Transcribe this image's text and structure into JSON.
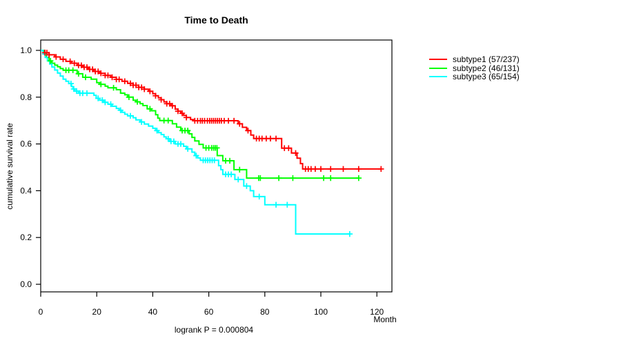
{
  "chart_data": {
    "type": "line",
    "subtype": "kaplan-meier-step-survival",
    "title": "Time to Death",
    "xlabel": "Month",
    "ylabel": "cumulative survival rate",
    "annotation": "logrank P = 0.000804",
    "xlim": [
      0,
      125
    ],
    "ylim": [
      0.0,
      1.0
    ],
    "xticks": [
      0,
      20,
      40,
      60,
      80,
      100,
      120
    ],
    "yticks": [
      "0.0",
      "0.2",
      "0.4",
      "0.6",
      "0.8",
      "1.0"
    ],
    "grid": false,
    "legend_position": "right-outside",
    "axis_color": "#000000",
    "background": "#ffffff",
    "series": [
      {
        "name": "subtype1 (57/237)",
        "events": 57,
        "n": 237,
        "color": "#FF0000",
        "end_month": 121.5,
        "steps": [
          [
            0,
            1.0
          ],
          [
            1.5,
            0.99
          ],
          [
            3,
            0.981
          ],
          [
            5,
            0.972
          ],
          [
            7,
            0.962
          ],
          [
            9,
            0.953
          ],
          [
            11,
            0.945
          ],
          [
            13,
            0.936
          ],
          [
            15,
            0.928
          ],
          [
            17,
            0.919
          ],
          [
            19,
            0.91
          ],
          [
            21,
            0.902
          ],
          [
            23,
            0.893
          ],
          [
            25,
            0.885
          ],
          [
            27,
            0.876
          ],
          [
            29,
            0.868
          ],
          [
            31,
            0.859
          ],
          [
            33,
            0.851
          ],
          [
            35,
            0.842
          ],
          [
            37,
            0.834
          ],
          [
            38.5,
            0.825
          ],
          [
            40,
            0.815
          ],
          [
            41,
            0.806
          ],
          [
            42,
            0.797
          ],
          [
            43,
            0.789
          ],
          [
            44,
            0.78
          ],
          [
            45,
            0.772
          ],
          [
            46.5,
            0.763
          ],
          [
            48,
            0.749
          ],
          [
            49,
            0.74
          ],
          [
            50,
            0.731
          ],
          [
            51,
            0.722
          ],
          [
            52,
            0.713
          ],
          [
            53.5,
            0.704
          ],
          [
            54.5,
            0.699
          ],
          [
            70.5,
            0.686
          ],
          [
            72,
            0.671
          ],
          [
            73.5,
            0.657
          ],
          [
            75,
            0.638
          ],
          [
            76,
            0.623
          ],
          [
            86,
            0.582
          ],
          [
            89.5,
            0.561
          ],
          [
            91.5,
            0.539
          ],
          [
            92.7,
            0.516
          ],
          [
            93.5,
            0.493
          ]
        ],
        "censor_months": [
          1.5,
          2.2,
          3,
          5.5,
          8,
          10.5,
          12,
          13.5,
          14.5,
          15.5,
          16.5,
          17.5,
          18.5,
          19.5,
          20.5,
          21.5,
          23,
          24,
          25.5,
          27,
          28,
          30,
          32,
          33,
          34,
          35,
          36,
          37,
          39,
          41,
          43,
          45,
          46,
          47,
          49,
          50.5,
          52,
          55,
          56,
          57,
          57.7,
          58.5,
          59.5,
          60.3,
          61,
          61.7,
          62.4,
          63.1,
          63.8,
          64.5,
          65.5,
          67,
          69,
          71,
          74,
          77,
          78,
          79,
          80.5,
          82,
          84,
          87,
          88.5,
          91,
          94.5,
          95.5,
          96.5,
          98,
          100,
          103.5,
          108,
          113.5,
          121.5
        ]
      },
      {
        "name": "subtype2 (46/131)",
        "events": 46,
        "n": 131,
        "color": "#00FF00",
        "end_month": 113.8,
        "steps": [
          [
            0,
            1.0
          ],
          [
            1,
            0.985
          ],
          [
            2,
            0.97
          ],
          [
            3,
            0.955
          ],
          [
            4,
            0.945
          ],
          [
            5,
            0.937
          ],
          [
            6,
            0.93
          ],
          [
            7,
            0.922
          ],
          [
            8,
            0.915
          ],
          [
            13,
            0.9
          ],
          [
            15,
            0.885
          ],
          [
            18,
            0.877
          ],
          [
            20,
            0.862
          ],
          [
            21,
            0.855
          ],
          [
            23,
            0.847
          ],
          [
            24,
            0.84
          ],
          [
            27,
            0.832
          ],
          [
            28.5,
            0.817
          ],
          [
            30,
            0.81
          ],
          [
            31,
            0.8
          ],
          [
            33,
            0.787
          ],
          [
            34,
            0.78
          ],
          [
            35.5,
            0.772
          ],
          [
            36.5,
            0.764
          ],
          [
            38,
            0.75
          ],
          [
            39.5,
            0.742
          ],
          [
            41,
            0.725
          ],
          [
            41.8,
            0.71
          ],
          [
            42.5,
            0.7
          ],
          [
            47,
            0.686
          ],
          [
            48.5,
            0.672
          ],
          [
            50,
            0.657
          ],
          [
            53,
            0.643
          ],
          [
            54,
            0.628
          ],
          [
            55,
            0.613
          ],
          [
            56.5,
            0.598
          ],
          [
            58,
            0.583
          ],
          [
            63,
            0.55
          ],
          [
            65,
            0.528
          ],
          [
            69,
            0.49
          ],
          [
            73.5,
            0.454
          ]
        ],
        "censor_months": [
          3.5,
          9,
          10,
          11.5,
          13.5,
          16,
          21.5,
          26,
          31.5,
          34.5,
          39,
          44,
          45.5,
          50.5,
          51.5,
          52.5,
          59,
          60,
          61,
          61.7,
          62.3,
          62.9,
          66,
          67.5,
          71,
          77.8,
          78.4,
          85,
          90,
          101,
          103.5,
          113.5
        ]
      },
      {
        "name": "subtype3 (65/154)",
        "events": 65,
        "n": 154,
        "color": "#00FFFF",
        "end_month": 110.6,
        "steps": [
          [
            0,
            1.0
          ],
          [
            0.8,
            0.985
          ],
          [
            1.6,
            0.97
          ],
          [
            2.4,
            0.955
          ],
          [
            3.2,
            0.942
          ],
          [
            4,
            0.929
          ],
          [
            5,
            0.916
          ],
          [
            6,
            0.903
          ],
          [
            7,
            0.89
          ],
          [
            8,
            0.877
          ],
          [
            9,
            0.868
          ],
          [
            10,
            0.858
          ],
          [
            11,
            0.845
          ],
          [
            11.6,
            0.835
          ],
          [
            12.2,
            0.826
          ],
          [
            13.5,
            0.817
          ],
          [
            19,
            0.808
          ],
          [
            19.8,
            0.795
          ],
          [
            21,
            0.787
          ],
          [
            22.5,
            0.778
          ],
          [
            24,
            0.77
          ],
          [
            25.5,
            0.761
          ],
          [
            27,
            0.752
          ],
          [
            28,
            0.744
          ],
          [
            29,
            0.735
          ],
          [
            30,
            0.727
          ],
          [
            31,
            0.72
          ],
          [
            33,
            0.712
          ],
          [
            34,
            0.703
          ],
          [
            35.5,
            0.694
          ],
          [
            37,
            0.685
          ],
          [
            38.5,
            0.676
          ],
          [
            40,
            0.667
          ],
          [
            41,
            0.657
          ],
          [
            42,
            0.648
          ],
          [
            43,
            0.64
          ],
          [
            44,
            0.63
          ],
          [
            44.8,
            0.622
          ],
          [
            46,
            0.611
          ],
          [
            48,
            0.6
          ],
          [
            51,
            0.59
          ],
          [
            52,
            0.579
          ],
          [
            54,
            0.565
          ],
          [
            55,
            0.55
          ],
          [
            56,
            0.54
          ],
          [
            57,
            0.53
          ],
          [
            63.5,
            0.507
          ],
          [
            64.3,
            0.49
          ],
          [
            65,
            0.47
          ],
          [
            69.3,
            0.448
          ],
          [
            72.5,
            0.42
          ],
          [
            74.8,
            0.4
          ],
          [
            76,
            0.375
          ],
          [
            80,
            0.34
          ],
          [
            91,
            0.215
          ]
        ],
        "censor_months": [
          10.8,
          11.8,
          12.8,
          14,
          15,
          16.5,
          20.5,
          22,
          23,
          25,
          28.5,
          32,
          36,
          41.5,
          45.5,
          46.5,
          47.5,
          49,
          50,
          52.5,
          55.5,
          58,
          58.8,
          59.6,
          60.4,
          61.2,
          62,
          66,
          67,
          68,
          70.5,
          73.5,
          78,
          84,
          88,
          110.3
        ]
      }
    ]
  }
}
